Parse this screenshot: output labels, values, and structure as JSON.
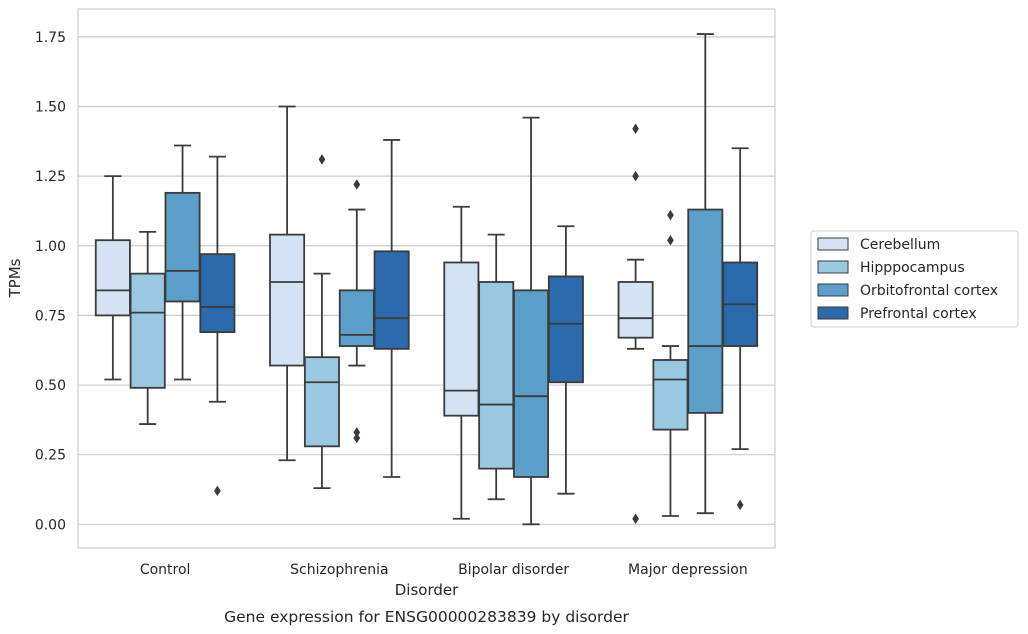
{
  "chart_data": {
    "type": "box",
    "title": "",
    "caption": "Gene expression for ENSG00000283839 by disorder",
    "xlabel": "Disorder",
    "ylabel": "TPMs",
    "ylim": [
      -0.085,
      1.85
    ],
    "yticks": [
      "0.00",
      "0.25",
      "0.50",
      "0.75",
      "1.00",
      "1.25",
      "1.50",
      "1.75"
    ],
    "ytick_values": [
      0,
      0.25,
      0.5,
      0.75,
      1.0,
      1.25,
      1.5,
      1.75
    ],
    "grid": "horizontal",
    "legend_position": "right",
    "categories": [
      "Control",
      "Schizophrenia",
      "Bipolar disorder",
      "Major depression"
    ],
    "series": [
      {
        "name": "Cerebellum",
        "color": "#d3e3f3",
        "boxes": [
          {
            "whislo": 0.52,
            "q1": 0.75,
            "med": 0.84,
            "q3": 1.02,
            "whishi": 1.25,
            "fliers": []
          },
          {
            "whislo": 0.23,
            "q1": 0.57,
            "med": 0.87,
            "q3": 1.04,
            "whishi": 1.5,
            "fliers": []
          },
          {
            "whislo": 0.02,
            "q1": 0.39,
            "med": 0.48,
            "q3": 0.94,
            "whishi": 1.14,
            "fliers": []
          },
          {
            "whislo": 0.63,
            "q1": 0.67,
            "med": 0.74,
            "q3": 0.87,
            "whishi": 0.95,
            "fliers": [
              1.42,
              1.25,
              0.02
            ]
          }
        ]
      },
      {
        "name": "Hipppocampus",
        "color": "#9ac8e0",
        "boxes": [
          {
            "whislo": 0.36,
            "q1": 0.49,
            "med": 0.76,
            "q3": 0.9,
            "whishi": 1.05,
            "fliers": []
          },
          {
            "whislo": 0.13,
            "q1": 0.28,
            "med": 0.51,
            "q3": 0.6,
            "whishi": 0.9,
            "fliers": [
              1.31
            ]
          },
          {
            "whislo": 0.09,
            "q1": 0.2,
            "med": 0.43,
            "q3": 0.87,
            "whishi": 1.04,
            "fliers": []
          },
          {
            "whislo": 0.03,
            "q1": 0.34,
            "med": 0.52,
            "q3": 0.59,
            "whishi": 0.64,
            "fliers": [
              1.11,
              1.02
            ]
          }
        ]
      },
      {
        "name": "Orbitofrontal cortex",
        "color": "#5a9ec9",
        "boxes": [
          {
            "whislo": 0.52,
            "q1": 0.8,
            "med": 0.91,
            "q3": 1.19,
            "whishi": 1.36,
            "fliers": []
          },
          {
            "whislo": 0.57,
            "q1": 0.64,
            "med": 0.68,
            "q3": 0.84,
            "whishi": 1.13,
            "fliers": [
              1.22,
              0.33,
              0.31
            ]
          },
          {
            "whislo": 0.0,
            "q1": 0.17,
            "med": 0.46,
            "q3": 0.84,
            "whishi": 1.46,
            "fliers": []
          },
          {
            "whislo": 0.04,
            "q1": 0.4,
            "med": 0.64,
            "q3": 1.13,
            "whishi": 1.76,
            "fliers": []
          }
        ]
      },
      {
        "name": "Prefrontal cortex",
        "color": "#2a6aad",
        "boxes": [
          {
            "whislo": 0.44,
            "q1": 0.69,
            "med": 0.78,
            "q3": 0.97,
            "whishi": 1.32,
            "fliers": [
              0.12
            ]
          },
          {
            "whislo": 0.17,
            "q1": 0.63,
            "med": 0.74,
            "q3": 0.98,
            "whishi": 1.38,
            "fliers": []
          },
          {
            "whislo": 0.11,
            "q1": 0.51,
            "med": 0.72,
            "q3": 0.89,
            "whishi": 1.07,
            "fliers": []
          },
          {
            "whislo": 0.27,
            "q1": 0.64,
            "med": 0.79,
            "q3": 0.94,
            "whishi": 1.35,
            "fliers": [
              0.07
            ]
          }
        ]
      }
    ]
  }
}
